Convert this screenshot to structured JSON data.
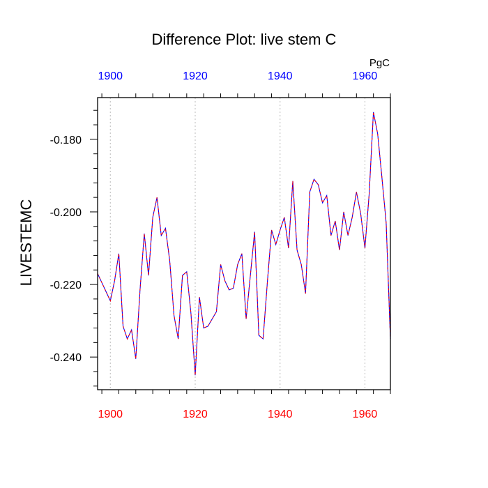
{
  "chart_data": {
    "type": "line",
    "title": "Difference Plot: live stem C",
    "units": "PgC",
    "ylabel": "LIVESTEMC",
    "xlim": [
      1897,
      1966
    ],
    "ylim": [
      -0.249,
      -0.1685
    ],
    "x_ticks": [
      1900,
      1920,
      1940,
      1960
    ],
    "x_tick_labels": [
      "1900",
      "1920",
      "1940",
      "1960"
    ],
    "y_ticks": [
      -0.18,
      -0.2,
      -0.22,
      -0.24
    ],
    "y_tick_labels": [
      "-0.180",
      "-0.200",
      "-0.220",
      "-0.240"
    ],
    "grid": "vertical-dashed",
    "colors": {
      "top_axis_labels": "#0000ff",
      "bottom_axis_labels": "#ff0000",
      "line_primary": "#0000ff",
      "line_secondary": "#ff0000",
      "grid": "#bbbbbb"
    },
    "series": [
      {
        "x": [
          1897,
          1898,
          1899,
          1900,
          1901,
          1902,
          1903,
          1904,
          1905,
          1906,
          1907,
          1908,
          1909,
          1910,
          1911,
          1912,
          1913,
          1914,
          1915,
          1916,
          1917,
          1918,
          1919,
          1920,
          1921,
          1922,
          1923,
          1924,
          1925,
          1926,
          1927,
          1928,
          1929,
          1930,
          1931,
          1932,
          1933,
          1934,
          1935,
          1936,
          1937,
          1938,
          1939,
          1940,
          1941,
          1942,
          1943,
          1944,
          1945,
          1946,
          1947,
          1948,
          1949,
          1950,
          1951,
          1952,
          1953,
          1954,
          1955,
          1956,
          1957,
          1958,
          1959,
          1960,
          1961,
          1962,
          1963,
          1964,
          1965,
          1966
        ],
        "values": [
          -0.217,
          -0.2195,
          -0.222,
          -0.2245,
          -0.219,
          -0.2115,
          -0.2315,
          -0.235,
          -0.2325,
          -0.2405,
          -0.2215,
          -0.206,
          -0.2175,
          -0.2015,
          -0.196,
          -0.2065,
          -0.2045,
          -0.2135,
          -0.2285,
          -0.235,
          -0.2175,
          -0.2165,
          -0.228,
          -0.245,
          -0.2235,
          -0.232,
          -0.2315,
          -0.2295,
          -0.2275,
          -0.2145,
          -0.219,
          -0.2215,
          -0.221,
          -0.2145,
          -0.2115,
          -0.2295,
          -0.2175,
          -0.2055,
          -0.234,
          -0.235,
          -0.2195,
          -0.205,
          -0.209,
          -0.205,
          -0.2015,
          -0.21,
          -0.1915,
          -0.2105,
          -0.2145,
          -0.2225,
          -0.1945,
          -0.191,
          -0.1925,
          -0.1975,
          -0.1955,
          -0.2065,
          -0.2025,
          -0.2105,
          -0.2,
          -0.2065,
          -0.2015,
          -0.1945,
          -0.2005,
          -0.21,
          -0.195,
          -0.1725,
          -0.1785,
          -0.1905,
          -0.203,
          -0.235
        ]
      }
    ]
  }
}
